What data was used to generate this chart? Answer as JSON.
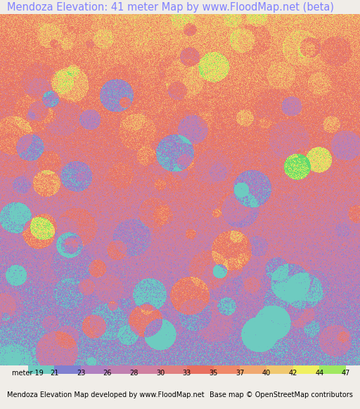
{
  "title": "Mendoza Elevation: 41 meter Map by www.FloodMap.net (beta)",
  "title_color": "#8080ff",
  "title_fontsize": 10.5,
  "background_color": "#f0ede8",
  "map_bg": "#f0ede8",
  "colorbar_labels": [
    "meter 19",
    "21",
    "23",
    "26",
    "28",
    "30",
    "33",
    "35",
    "37",
    "40",
    "42",
    "44",
    "47"
  ],
  "colorbar_values": [
    19,
    21,
    23,
    26,
    28,
    30,
    33,
    35,
    37,
    40,
    42,
    44,
    47
  ],
  "colorbar_colors": [
    "#6ecbc0",
    "#8080d0",
    "#b080c0",
    "#c080b0",
    "#d080a0",
    "#e08080",
    "#e87060",
    "#f08868",
    "#f0a870",
    "#f0c870",
    "#f0f060",
    "#a0e860",
    "#60d870"
  ],
  "footer_left": "Mendoza Elevation Map developed by www.FloodMap.net",
  "footer_right": "Base map © OpenStreetMap contributors",
  "footer_fontsize": 7,
  "map_image_placeholder": true,
  "fig_width": 5.12,
  "fig_height": 5.82,
  "dpi": 100
}
